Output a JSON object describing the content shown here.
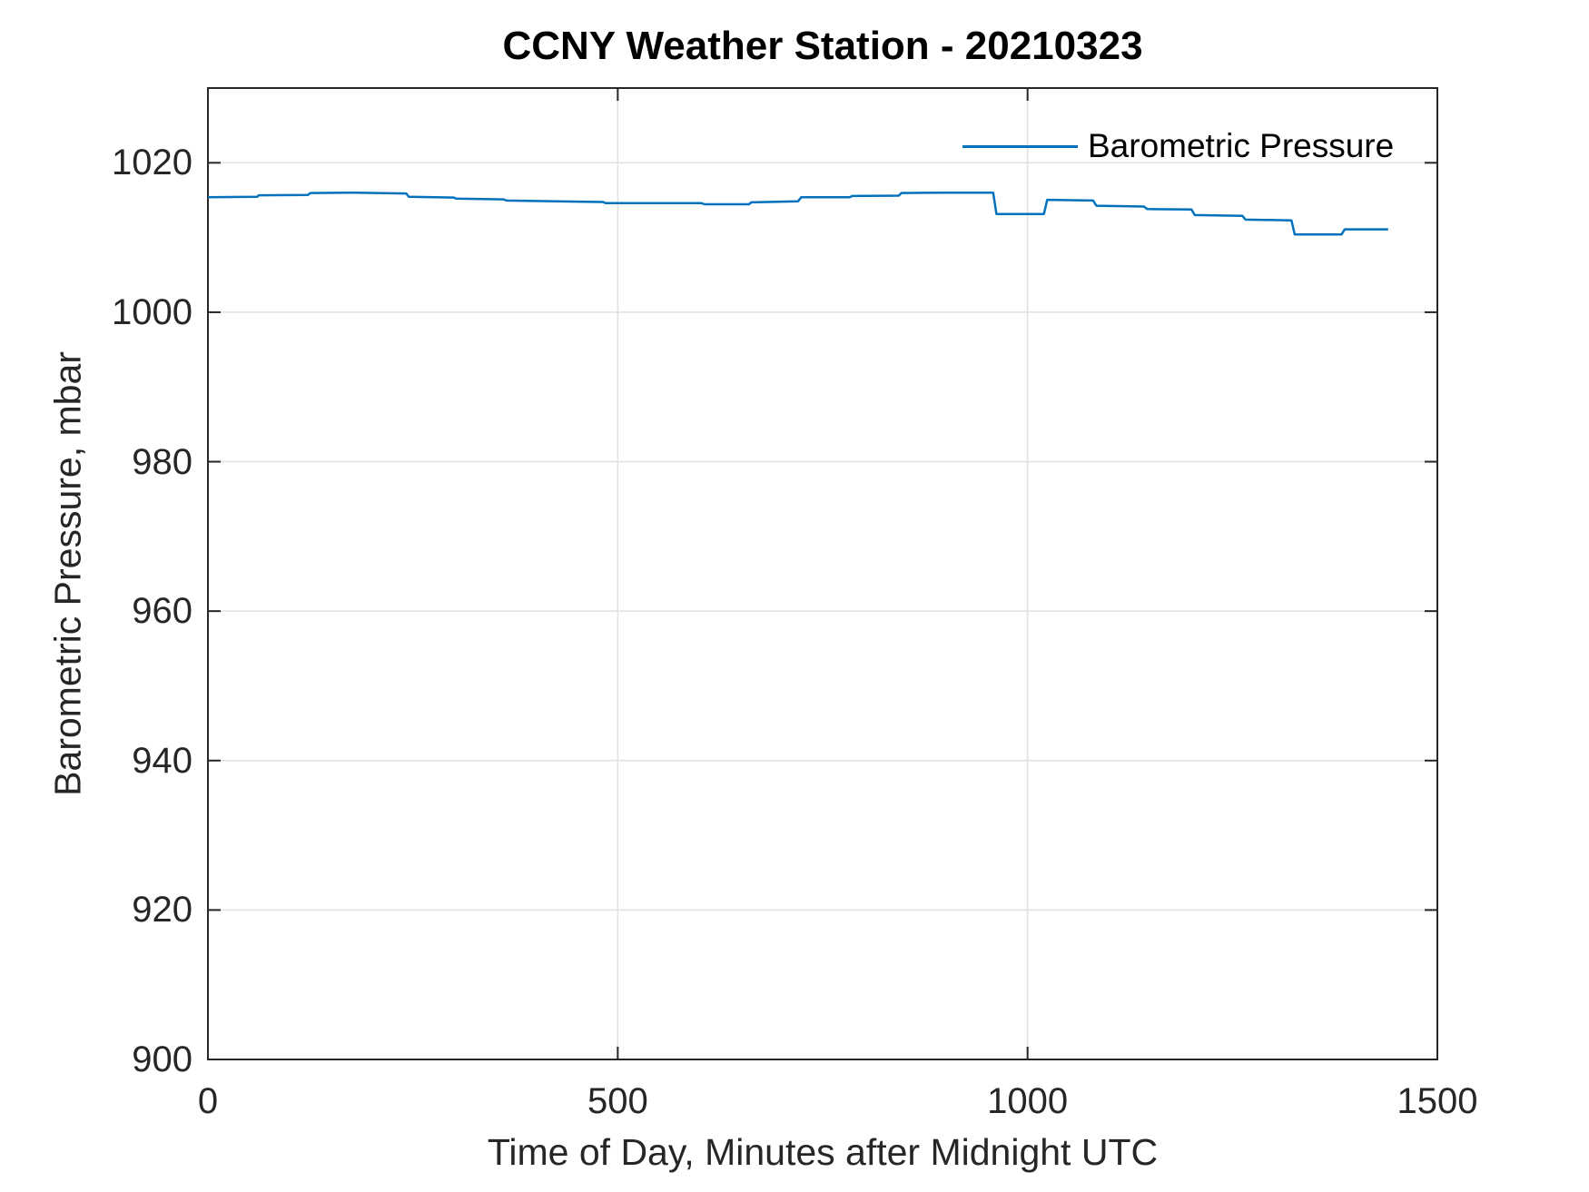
{
  "chart_data": {
    "type": "line",
    "title": "CCNY Weather Station - 20210323",
    "xlabel": "Time of Day, Minutes after Midnight UTC",
    "ylabel": "Barometric Pressure, mbar",
    "xlim": [
      0,
      1500
    ],
    "ylim": [
      900,
      1030
    ],
    "xticks": [
      "0",
      "500",
      "1000",
      "1500"
    ],
    "yticks": [
      "900",
      "920",
      "940",
      "960",
      "980",
      "1000",
      "1020"
    ],
    "grid": true,
    "legend": {
      "position": "top-right-inside",
      "box": false
    },
    "colors": {
      "line": "#0072BD",
      "axis": "#262626",
      "grid": "#e0e0e0",
      "title": "#000000"
    },
    "series": [
      {
        "name": "Barometric Pressure",
        "x_units": "minutes after midnight UTC",
        "y_units": "mbar",
        "points": [
          [
            0,
            1015.4
          ],
          [
            60,
            1015.45
          ],
          [
            62,
            1015.65
          ],
          [
            122,
            1015.7
          ],
          [
            125,
            1015.95
          ],
          [
            180,
            1016.0
          ],
          [
            242,
            1015.9
          ],
          [
            245,
            1015.45
          ],
          [
            300,
            1015.35
          ],
          [
            303,
            1015.2
          ],
          [
            361,
            1015.1
          ],
          [
            364,
            1014.95
          ],
          [
            482,
            1014.75
          ],
          [
            485,
            1014.6
          ],
          [
            602,
            1014.6
          ],
          [
            606,
            1014.45
          ],
          [
            660,
            1014.45
          ],
          [
            663,
            1014.7
          ],
          [
            720,
            1014.85
          ],
          [
            724,
            1015.4
          ],
          [
            783,
            1015.4
          ],
          [
            786,
            1015.55
          ],
          [
            843,
            1015.6
          ],
          [
            846,
            1015.95
          ],
          [
            900,
            1016.0
          ],
          [
            958,
            1016.0
          ],
          [
            962,
            1013.15
          ],
          [
            1020,
            1013.15
          ],
          [
            1024,
            1015.05
          ],
          [
            1080,
            1014.95
          ],
          [
            1084,
            1014.25
          ],
          [
            1142,
            1014.15
          ],
          [
            1146,
            1013.8
          ],
          [
            1200,
            1013.75
          ],
          [
            1204,
            1013.0
          ],
          [
            1262,
            1012.9
          ],
          [
            1266,
            1012.4
          ],
          [
            1322,
            1012.3
          ],
          [
            1326,
            1010.4
          ],
          [
            1383,
            1010.4
          ],
          [
            1387,
            1011.1
          ],
          [
            1440,
            1011.1
          ]
        ]
      }
    ]
  }
}
